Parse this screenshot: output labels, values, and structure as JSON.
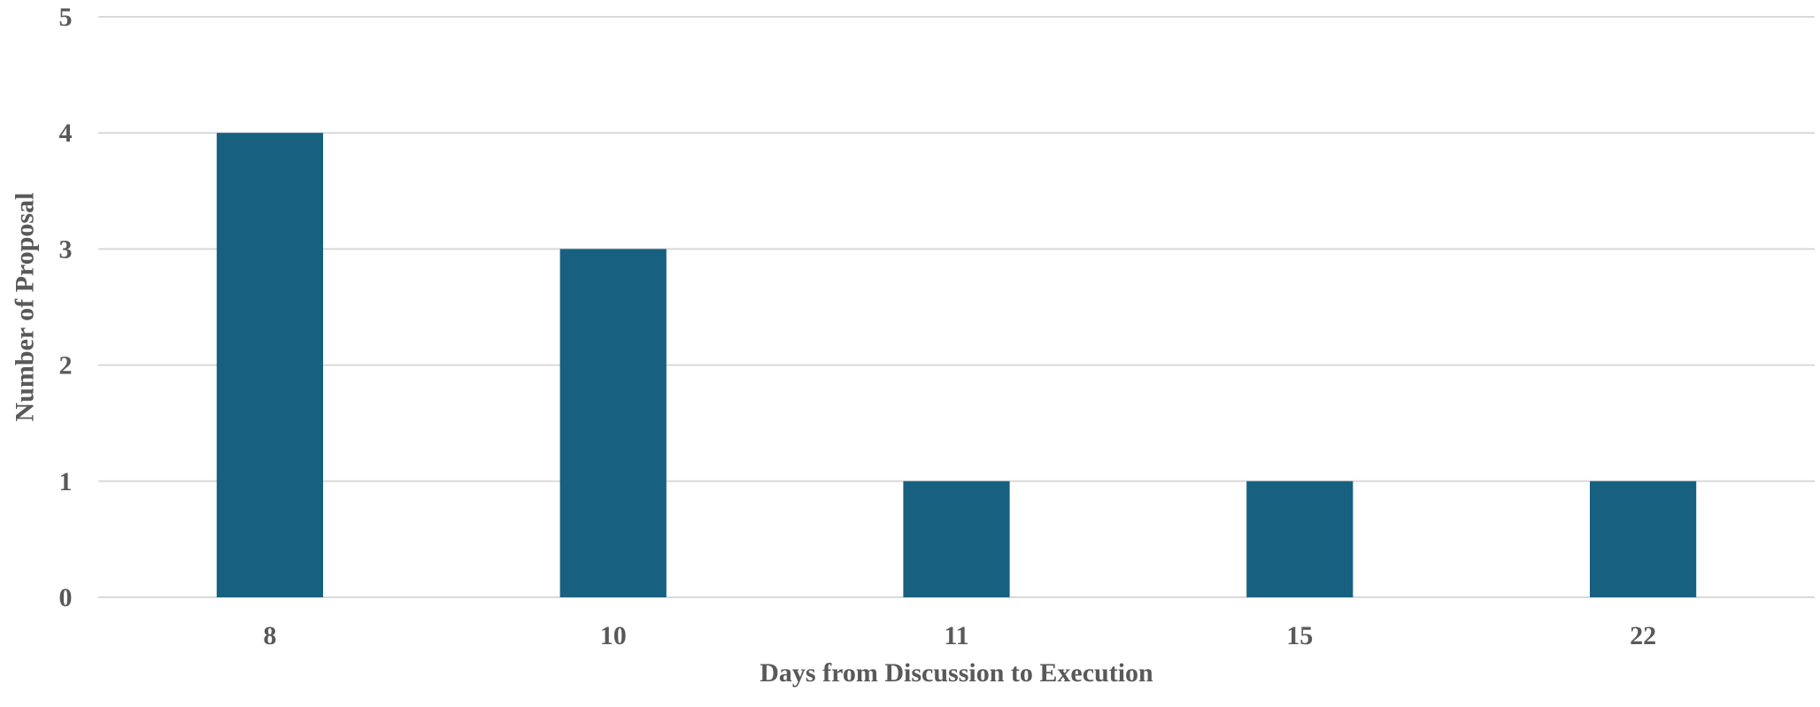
{
  "chart_data": {
    "type": "bar",
    "title": "",
    "xlabel": "Days from Discussion to Execution",
    "ylabel": "Number of Proposal",
    "categories": [
      "8",
      "10",
      "11",
      "15",
      "22"
    ],
    "values": [
      4,
      3,
      1,
      1,
      1
    ],
    "ylim": [
      0,
      5
    ],
    "yticks": [
      "0",
      "1",
      "2",
      "3",
      "4",
      "5"
    ],
    "grid": true,
    "legend": "none",
    "bar_color": "#17607f"
  }
}
